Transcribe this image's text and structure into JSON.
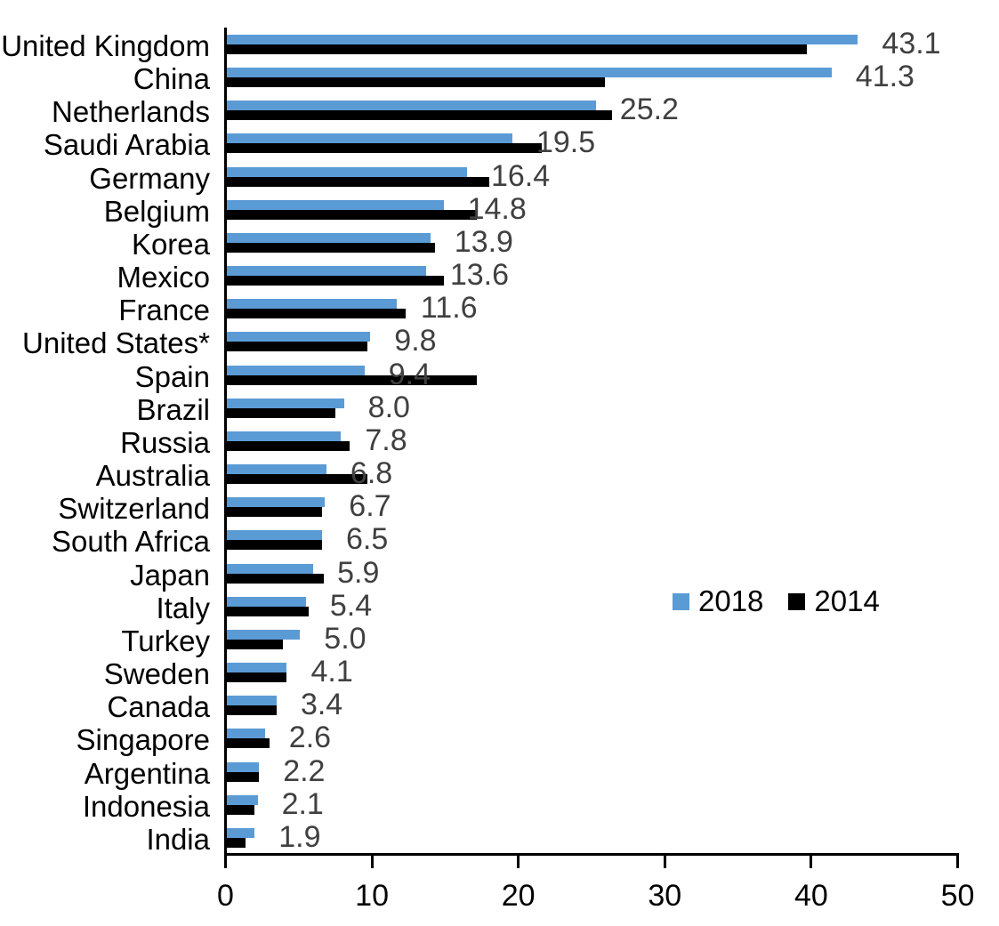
{
  "chart_data": {
    "type": "bar",
    "orientation": "horizontal",
    "title": "",
    "xlabel": "",
    "ylabel": "",
    "xlim": [
      0,
      50
    ],
    "x_ticks": [
      0,
      10,
      20,
      30,
      40,
      50
    ],
    "x_tick_labels": [
      "0",
      "10",
      "20",
      "30",
      "40",
      "50"
    ],
    "grid": false,
    "categories": [
      "United Kingdom",
      "China",
      "Netherlands",
      "Saudi Arabia",
      "Germany",
      "Belgium",
      "Korea",
      "Mexico",
      "France",
      "United States*",
      "Spain",
      "Brazil",
      "Russia",
      "Australia",
      "Switzerland",
      "South Africa",
      "Japan",
      "Italy",
      "Turkey",
      "Sweden",
      "Canada",
      "Singapore",
      "Argentina",
      "Indonesia",
      "India"
    ],
    "series": [
      {
        "name": "2018",
        "color": "#5B9BD5",
        "values": [
          43.1,
          41.3,
          25.2,
          19.5,
          16.4,
          14.8,
          13.9,
          13.6,
          11.6,
          9.8,
          9.4,
          8.0,
          7.8,
          6.8,
          6.7,
          6.5,
          5.9,
          5.4,
          5.0,
          4.1,
          3.4,
          2.6,
          2.2,
          2.1,
          1.9
        ],
        "data_labels": [
          "43.1",
          "41.3",
          "25.2",
          "19.5",
          "16.4",
          "14.8",
          "13.9",
          "13.6",
          "11.6",
          "9.8",
          "9.4",
          "8.0",
          "7.8",
          "6.8",
          "6.7",
          "6.5",
          "5.9",
          "5.4",
          "5.0",
          "4.1",
          "3.4",
          "2.6",
          "2.2",
          "2.1",
          "1.9"
        ]
      },
      {
        "name": "2014",
        "color": "#000000",
        "values": [
          39.6,
          25.8,
          26.3,
          21.5,
          17.9,
          17.1,
          14.2,
          14.8,
          12.2,
          9.6,
          17.1,
          7.4,
          8.4,
          9.6,
          6.5,
          6.5,
          6.6,
          5.6,
          3.8,
          4.1,
          3.4,
          2.9,
          2.2,
          1.9,
          1.3
        ]
      }
    ],
    "data_label_color": "#404040",
    "legend": {
      "position": "middle-right",
      "entries": [
        {
          "label": "2018",
          "color": "#5B9BD5"
        },
        {
          "label": "2014",
          "color": "#000000"
        }
      ]
    }
  }
}
